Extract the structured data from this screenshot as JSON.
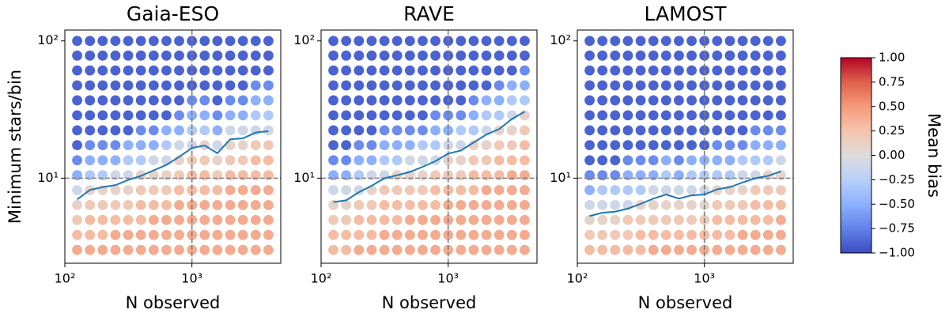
{
  "chart_data": [
    {
      "type": "scatter",
      "title": "Gaia-ESO",
      "xlabel": "N observed",
      "ylabel": "Minimum stars/bin",
      "xscale": "log",
      "yscale": "log",
      "xlim": [
        100,
        5000
      ],
      "ylim": [
        2.4,
        120
      ],
      "xticks": [
        {
          "value": 100,
          "label": "10²"
        },
        {
          "value": 1000,
          "label": "10³"
        }
      ],
      "yticks": [
        {
          "value": 10,
          "label": "10¹"
        },
        {
          "value": 100,
          "label": "10²"
        }
      ],
      "vlines": [
        1000
      ],
      "hlines": [
        10
      ],
      "x": [
        125,
        157.5,
        198.4,
        250,
        315,
        396.9,
        500,
        630,
        793.7,
        1000,
        1260,
        1587,
        2000,
        2520,
        3175,
        4000
      ],
      "y": [
        3,
        3.86,
        4.96,
        6.37,
        8.18,
        10.5,
        13.5,
        17.4,
        22.3,
        28.7,
        36.9,
        47.4,
        60.9,
        78.2,
        100
      ],
      "values": [
        [
          0.4,
          0.3,
          0.2,
          0.1,
          -0.1,
          -0.5,
          -0.7,
          -0.9,
          -0.9,
          -0.9,
          -0.9,
          -0.9,
          -0.9,
          -0.9,
          -0.9
        ],
        [
          0.4,
          0.3,
          0.3,
          0.2,
          0.1,
          -0.3,
          -0.5,
          -0.7,
          -0.9,
          -0.9,
          -0.9,
          -0.9,
          -0.9,
          -0.9,
          -0.9
        ],
        [
          0.4,
          0.3,
          0.3,
          0.2,
          0.1,
          -0.3,
          -0.5,
          -0.7,
          -0.9,
          -0.9,
          -0.9,
          -0.9,
          -0.9,
          -0.9,
          -0.9
        ],
        [
          0.4,
          0.4,
          0.3,
          0.2,
          0.1,
          -0.1,
          -0.5,
          -0.7,
          -0.9,
          -0.9,
          -0.9,
          -0.9,
          -0.9,
          -0.9,
          -0.9
        ],
        [
          0.4,
          0.4,
          0.3,
          0.2,
          0.1,
          -0.1,
          -0.3,
          -0.5,
          -0.9,
          -0.9,
          -0.9,
          -0.9,
          -0.9,
          -0.9,
          -0.9
        ],
        [
          0.4,
          0.4,
          0.3,
          0.3,
          0.2,
          0.1,
          -0.3,
          -0.5,
          -0.7,
          -0.9,
          -0.9,
          -0.9,
          -0.9,
          -0.9,
          -0.9
        ],
        [
          0.4,
          0.4,
          0.4,
          0.3,
          0.2,
          0.1,
          -0.1,
          -0.5,
          -0.7,
          -0.9,
          -0.9,
          -0.9,
          -0.9,
          -0.9,
          -0.9
        ],
        [
          0.4,
          0.4,
          0.4,
          0.3,
          0.2,
          0.1,
          -0.1,
          -0.3,
          -0.5,
          -0.9,
          -0.9,
          -0.9,
          -0.9,
          -0.9,
          -0.9
        ],
        [
          0.4,
          0.4,
          0.4,
          0.4,
          0.3,
          0.2,
          0.1,
          -0.1,
          -0.5,
          -0.7,
          -0.9,
          -0.9,
          -0.9,
          -0.9,
          -0.9
        ],
        [
          0.4,
          0.4,
          0.4,
          0.4,
          0.3,
          0.3,
          0.2,
          -0.1,
          -0.3,
          -0.5,
          -0.7,
          -0.9,
          -0.9,
          -0.9,
          -0.9
        ],
        [
          0.4,
          0.4,
          0.4,
          0.4,
          0.3,
          0.3,
          0.2,
          0.1,
          -0.3,
          -0.5,
          -0.7,
          -0.9,
          -0.9,
          -0.9,
          -0.9
        ],
        [
          0.4,
          0.4,
          0.4,
          0.4,
          0.3,
          0.2,
          0.1,
          -0.1,
          -0.5,
          -0.7,
          -0.9,
          -0.9,
          -0.9,
          -0.9,
          -0.9
        ],
        [
          0.4,
          0.4,
          0.4,
          0.4,
          0.4,
          0.3,
          0.2,
          0.1,
          -0.1,
          -0.5,
          -0.7,
          -0.9,
          -0.9,
          -0.9,
          -0.9
        ],
        [
          0.4,
          0.4,
          0.4,
          0.4,
          0.4,
          0.3,
          0.2,
          0.1,
          -0.1,
          -0.5,
          -0.7,
          -0.9,
          -0.9,
          -0.9,
          -0.9
        ],
        [
          0.4,
          0.4,
          0.4,
          0.4,
          0.4,
          0.3,
          0.3,
          0.2,
          -0.1,
          -0.3,
          -0.5,
          -0.7,
          -0.9,
          -0.9,
          -0.9
        ],
        [
          0.4,
          0.4,
          0.4,
          0.4,
          0.4,
          0.3,
          0.3,
          0.2,
          -0.1,
          -0.3,
          -0.5,
          -0.7,
          -0.9,
          -0.9,
          -0.9
        ]
      ],
      "line": {
        "color": "#1f77b4",
        "values": [
          7.0,
          8.2,
          8.6,
          8.9,
          9.7,
          10.4,
          11.4,
          12.5,
          14.3,
          16.6,
          17.3,
          15.2,
          19.2,
          19.5,
          21.5,
          22.0
        ]
      }
    },
    {
      "type": "scatter",
      "title": "RAVE",
      "xlabel": "N observed",
      "xscale": "log",
      "yscale": "log",
      "xlim": [
        100,
        5000
      ],
      "ylim": [
        2.4,
        120
      ],
      "xticks": [
        {
          "value": 100,
          "label": "10²"
        },
        {
          "value": 1000,
          "label": "10³"
        }
      ],
      "yticks": [
        {
          "value": 10,
          "label": "10¹"
        },
        {
          "value": 100,
          "label": "10²"
        }
      ],
      "vlines": [
        1000
      ],
      "hlines": [
        10
      ],
      "x": [
        125,
        157.5,
        198.4,
        250,
        315,
        396.9,
        500,
        630,
        793.7,
        1000,
        1260,
        1587,
        2000,
        2520,
        3175,
        4000
      ],
      "y": [
        3,
        3.86,
        4.96,
        6.37,
        8.18,
        10.5,
        13.5,
        17.4,
        22.3,
        28.7,
        36.9,
        47.4,
        60.9,
        78.2,
        100
      ],
      "values": [
        [
          0.3,
          0.3,
          0.2,
          0.1,
          -0.1,
          -0.5,
          -0.7,
          -0.9,
          -0.9,
          -0.9,
          -0.9,
          -0.9,
          -0.9,
          -0.9,
          -0.9
        ],
        [
          0.3,
          0.3,
          0.2,
          0.1,
          -0.1,
          -0.5,
          -0.7,
          -0.9,
          -0.9,
          -0.9,
          -0.9,
          -0.9,
          -0.9,
          -0.9,
          -0.9
        ],
        [
          0.4,
          0.3,
          0.3,
          0.2,
          -0.1,
          -0.3,
          -0.5,
          -0.7,
          -0.9,
          -0.9,
          -0.9,
          -0.9,
          -0.9,
          -0.9,
          -0.9
        ],
        [
          0.4,
          0.3,
          0.3,
          0.2,
          0.1,
          -0.1,
          -0.5,
          -0.7,
          -0.9,
          -0.9,
          -0.9,
          -0.9,
          -0.9,
          -0.9,
          -0.9
        ],
        [
          0.4,
          0.4,
          0.3,
          0.3,
          0.2,
          -0.1,
          -0.3,
          -0.5,
          -0.7,
          -0.9,
          -0.9,
          -0.9,
          -0.9,
          -0.9,
          -0.9
        ],
        [
          0.4,
          0.4,
          0.3,
          0.3,
          0.2,
          0.1,
          -0.3,
          -0.5,
          -0.7,
          -0.9,
          -0.9,
          -0.9,
          -0.9,
          -0.9,
          -0.9
        ],
        [
          0.4,
          0.4,
          0.4,
          0.3,
          0.2,
          0.1,
          -0.1,
          -0.5,
          -0.7,
          -0.9,
          -0.9,
          -0.9,
          -0.9,
          -0.9,
          -0.9
        ],
        [
          0.4,
          0.4,
          0.4,
          0.3,
          0.2,
          0.1,
          -0.1,
          -0.3,
          -0.7,
          -0.9,
          -0.9,
          -0.9,
          -0.9,
          -0.9,
          -0.9
        ],
        [
          0.4,
          0.4,
          0.4,
          0.3,
          0.3,
          0.2,
          -0.1,
          -0.3,
          -0.5,
          -0.7,
          -0.9,
          -0.9,
          -0.9,
          -0.9,
          -0.9
        ],
        [
          0.4,
          0.4,
          0.4,
          0.4,
          0.3,
          0.2,
          0.1,
          -0.1,
          -0.5,
          -0.7,
          -0.9,
          -0.9,
          -0.9,
          -0.9,
          -0.9
        ],
        [
          0.4,
          0.4,
          0.4,
          0.4,
          0.3,
          0.2,
          0.1,
          -0.1,
          -0.3,
          -0.7,
          -0.9,
          -0.9,
          -0.9,
          -0.9,
          -0.9
        ],
        [
          0.4,
          0.4,
          0.4,
          0.4,
          0.3,
          0.3,
          0.2,
          0.1,
          -0.3,
          -0.5,
          -0.7,
          -0.9,
          -0.9,
          -0.9,
          -0.9
        ],
        [
          0.4,
          0.4,
          0.4,
          0.4,
          0.4,
          0.3,
          0.2,
          0.1,
          -0.1,
          -0.3,
          -0.5,
          -0.9,
          -0.9,
          -0.9,
          -0.9
        ],
        [
          0.4,
          0.4,
          0.4,
          0.4,
          0.4,
          0.3,
          0.3,
          0.2,
          0.1,
          -0.3,
          -0.5,
          -0.7,
          -0.9,
          -0.9,
          -0.9
        ],
        [
          0.4,
          0.4,
          0.4,
          0.4,
          0.4,
          0.4,
          0.3,
          0.2,
          0.1,
          -0.1,
          -0.3,
          -0.5,
          -0.9,
          -0.9,
          -0.9
        ],
        [
          0.4,
          0.4,
          0.4,
          0.4,
          0.4,
          0.4,
          0.3,
          0.3,
          0.2,
          0.1,
          -0.3,
          -0.5,
          -0.7,
          -0.9,
          -0.9
        ]
      ],
      "line": {
        "color": "#1f77b4",
        "values": [
          6.7,
          6.9,
          7.9,
          8.8,
          10.0,
          10.5,
          11.1,
          12.1,
          13.3,
          15.1,
          15.9,
          18.2,
          20.8,
          22.8,
          27.0,
          30.5
        ]
      }
    },
    {
      "type": "scatter",
      "title": "LAMOST",
      "xlabel": "N observed",
      "xscale": "log",
      "yscale": "log",
      "xlim": [
        100,
        5000
      ],
      "ylim": [
        2.4,
        120
      ],
      "xticks": [
        {
          "value": 100,
          "label": "10²"
        },
        {
          "value": 1000,
          "label": "10³"
        }
      ],
      "yticks": [
        {
          "value": 10,
          "label": "10¹"
        },
        {
          "value": 100,
          "label": "10²"
        }
      ],
      "vlines": [
        1000
      ],
      "hlines": [
        10
      ],
      "x": [
        125,
        157.5,
        198.4,
        250,
        315,
        396.9,
        500,
        630,
        793.7,
        1000,
        1260,
        1587,
        2000,
        2520,
        3175,
        4000
      ],
      "y": [
        3,
        3.86,
        4.96,
        6.37,
        8.18,
        10.5,
        13.5,
        17.4,
        22.3,
        28.7,
        36.9,
        47.4,
        60.9,
        78.2,
        100
      ],
      "values": [
        [
          0.3,
          0.2,
          0.1,
          -0.1,
          -0.5,
          -0.7,
          -0.9,
          -0.9,
          -0.9,
          -0.9,
          -0.9,
          -0.9,
          -0.9,
          -0.9,
          -0.9
        ],
        [
          0.3,
          0.2,
          0.1,
          -0.1,
          -0.3,
          -0.7,
          -0.9,
          -0.9,
          -0.9,
          -0.9,
          -0.9,
          -0.9,
          -0.9,
          -0.9,
          -0.9
        ],
        [
          0.3,
          0.2,
          0.1,
          -0.1,
          -0.3,
          -0.7,
          -0.9,
          -0.9,
          -0.9,
          -0.9,
          -0.9,
          -0.9,
          -0.9,
          -0.9,
          -0.9
        ],
        [
          0.3,
          0.2,
          0.2,
          -0.1,
          -0.3,
          -0.5,
          -0.7,
          -0.9,
          -0.9,
          -0.9,
          -0.9,
          -0.9,
          -0.9,
          -0.9,
          -0.9
        ],
        [
          0.3,
          0.3,
          0.2,
          0.1,
          -0.3,
          -0.5,
          -0.7,
          -0.9,
          -0.9,
          -0.9,
          -0.9,
          -0.9,
          -0.9,
          -0.9,
          -0.9
        ],
        [
          0.4,
          0.3,
          0.2,
          0.1,
          -0.1,
          -0.5,
          -0.7,
          -0.9,
          -0.9,
          -0.9,
          -0.9,
          -0.9,
          -0.9,
          -0.9,
          -0.9
        ],
        [
          0.4,
          0.3,
          0.2,
          0.1,
          -0.1,
          -0.3,
          -0.5,
          -0.9,
          -0.9,
          -0.9,
          -0.9,
          -0.9,
          -0.9,
          -0.9,
          -0.9
        ],
        [
          0.4,
          0.3,
          0.2,
          0.1,
          -0.1,
          -0.5,
          -0.7,
          -0.9,
          -0.9,
          -0.9,
          -0.9,
          -0.9,
          -0.9,
          -0.9,
          -0.9
        ],
        [
          0.4,
          0.3,
          0.2,
          0.1,
          -0.1,
          -0.3,
          -0.5,
          -0.9,
          -0.9,
          -0.9,
          -0.9,
          -0.9,
          -0.9,
          -0.9,
          -0.9
        ],
        [
          0.4,
          0.3,
          0.2,
          0.1,
          -0.1,
          -0.3,
          -0.5,
          -0.9,
          -0.9,
          -0.9,
          -0.9,
          -0.9,
          -0.9,
          -0.9,
          -0.9
        ],
        [
          0.4,
          0.3,
          0.3,
          0.2,
          0.1,
          -0.3,
          -0.5,
          -0.7,
          -0.9,
          -0.9,
          -0.9,
          -0.9,
          -0.9,
          -0.9,
          -0.9
        ],
        [
          0.4,
          0.3,
          0.3,
          0.2,
          0.1,
          -0.3,
          -0.5,
          -0.7,
          -0.9,
          -0.9,
          -0.9,
          -0.9,
          -0.9,
          -0.9,
          -0.9
        ],
        [
          0.4,
          0.4,
          0.3,
          0.2,
          0.1,
          -0.1,
          -0.3,
          -0.7,
          -0.9,
          -0.9,
          -0.9,
          -0.9,
          -0.9,
          -0.9,
          -0.9
        ],
        [
          0.4,
          0.4,
          0.3,
          0.3,
          0.2,
          -0.1,
          -0.3,
          -0.5,
          -0.7,
          -0.9,
          -0.9,
          -0.9,
          -0.9,
          -0.9,
          -0.9
        ],
        [
          0.4,
          0.4,
          0.3,
          0.3,
          0.2,
          0.1,
          -0.3,
          -0.5,
          -0.7,
          -0.9,
          -0.9,
          -0.9,
          -0.9,
          -0.9,
          -0.9
        ],
        [
          0.4,
          0.4,
          0.4,
          0.3,
          0.2,
          0.1,
          -0.1,
          -0.5,
          -0.7,
          -0.9,
          -0.9,
          -0.9,
          -0.9,
          -0.9,
          -0.9
        ]
      ],
      "line": {
        "color": "#1f77b4",
        "values": [
          5.3,
          5.6,
          5.7,
          6.0,
          6.5,
          7.1,
          7.6,
          7.1,
          7.5,
          7.6,
          8.3,
          8.6,
          9.3,
          10.0,
          10.4,
          11.2
        ]
      }
    }
  ],
  "colorbar": {
    "label": "Mean bias",
    "cmap": "coolwarm",
    "clim": [
      -1,
      1
    ],
    "ticks": [
      {
        "value": 1,
        "label": "1.00"
      },
      {
        "value": 0.75,
        "label": "0.75"
      },
      {
        "value": 0.5,
        "label": "0.50"
      },
      {
        "value": 0.25,
        "label": "0.25"
      },
      {
        "value": 0,
        "label": "0.00"
      },
      {
        "value": -0.25,
        "label": "−0.25"
      },
      {
        "value": -0.5,
        "label": "−0.50"
      },
      {
        "value": -0.75,
        "label": "−0.75"
      },
      {
        "value": -1,
        "label": "−1.00"
      }
    ]
  }
}
